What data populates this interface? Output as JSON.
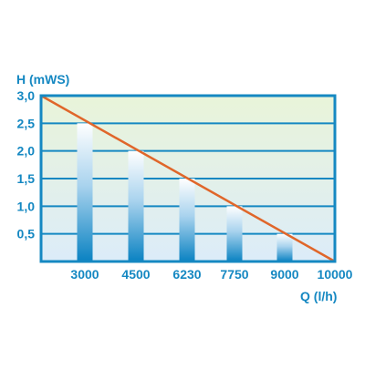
{
  "chart_data": {
    "type": "bar",
    "title": "",
    "ylabel": "H (mWS)",
    "xlabel": "Q (l/h)",
    "ylim": [
      0,
      3.0
    ],
    "yticks": [
      "0,5",
      "1,0",
      "1,5",
      "2,0",
      "2,5",
      "3,0"
    ],
    "ytick_values": [
      0.5,
      1.0,
      1.5,
      2.0,
      2.5,
      3.0
    ],
    "xticks": [
      "3000",
      "4500",
      "6230",
      "7750",
      "9000",
      "10000"
    ],
    "categories": [
      "3000",
      "4500",
      "6230",
      "7750",
      "9000"
    ],
    "values": [
      2.5,
      2.0,
      1.5,
      1.0,
      0.5
    ],
    "curve": {
      "from": [
        0,
        3.0
      ],
      "to": [
        10000,
        0.0
      ]
    },
    "grid": true
  },
  "colors": {
    "axis": "#1588c2",
    "grid": "#1588c2",
    "background": "#e6f3d4",
    "curve": "#e0662a",
    "bar_top": "#ffffff",
    "bar_bottom": "#0a82c2"
  }
}
